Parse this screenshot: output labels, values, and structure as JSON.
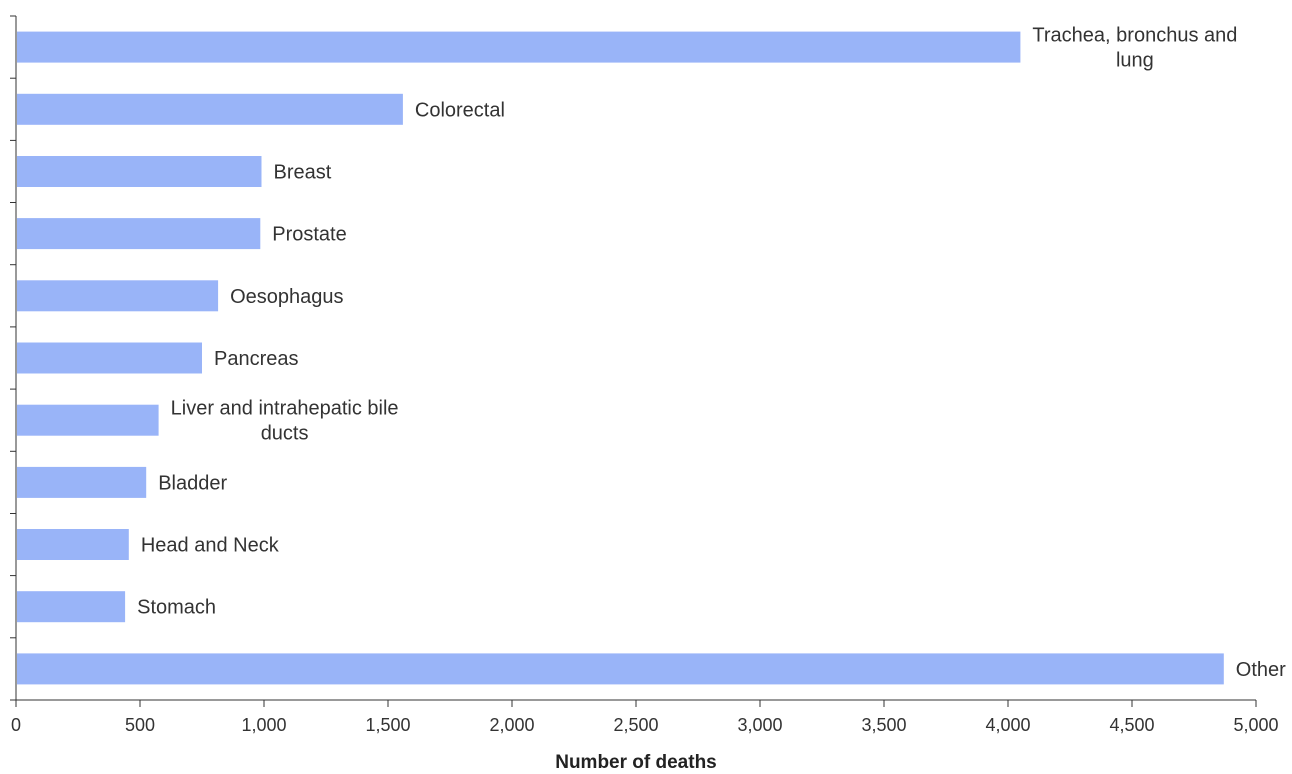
{
  "chart_data": {
    "type": "bar",
    "orientation": "horizontal",
    "categories": [
      "Trachea, bronchus and lung",
      "Colorectal",
      "Breast",
      "Prostate",
      "Oesophagus",
      "Pancreas",
      "Liver and intrahepatic bile ducts",
      "Bladder",
      "Head and Neck",
      "Stomach",
      "Other"
    ],
    "category_label_lines": [
      [
        "Trachea, bronchus and",
        "lung"
      ],
      [
        "Colorectal"
      ],
      [
        "Breast"
      ],
      [
        "Prostate"
      ],
      [
        "Oesophagus"
      ],
      [
        "Pancreas"
      ],
      [
        "Liver and intrahepatic bile",
        "ducts"
      ],
      [
        "Bladder"
      ],
      [
        "Head and Neck"
      ],
      [
        "Stomach"
      ],
      [
        "Other"
      ]
    ],
    "values": [
      4050,
      1560,
      990,
      985,
      815,
      750,
      575,
      525,
      455,
      440,
      4870
    ],
    "xlabel": "Number of deaths",
    "xlim": [
      0,
      5000
    ],
    "x_ticks": [
      0,
      500,
      1000,
      1500,
      2000,
      2500,
      3000,
      3500,
      4000,
      4500,
      5000
    ],
    "x_tick_labels": [
      "0",
      "500",
      "1,000",
      "1,500",
      "2,000",
      "2,500",
      "3,000",
      "3,500",
      "4,000",
      "4,500",
      "5,000"
    ],
    "grid": false,
    "legend": "none",
    "bar_color": "#99b4f8",
    "label_position": "end-of-bar"
  }
}
